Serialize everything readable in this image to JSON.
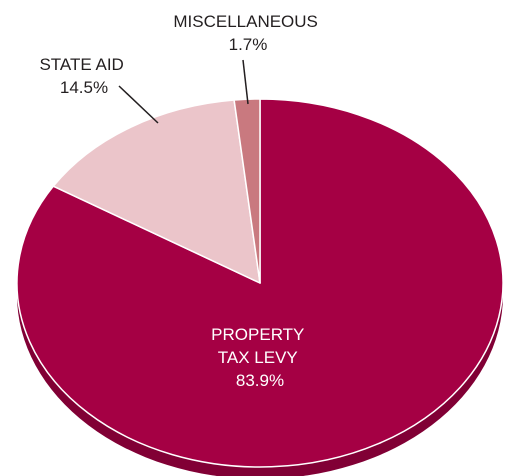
{
  "chart_data": {
    "type": "pie",
    "categories": [
      "PROPERTY TAX LEVY",
      "STATE AID",
      "MISCELLANEOUS"
    ],
    "values": [
      83.9,
      14.5,
      1.7
    ],
    "labels": [
      {
        "lines": [
          "PROPERTY",
          "TAX LEVY"
        ],
        "pct": "83.9%"
      },
      {
        "lines": [
          "STATE AID"
        ],
        "pct": "14.5%"
      },
      {
        "lines": [
          "MISCELLANEOUS"
        ],
        "pct": "1.7%"
      }
    ],
    "colors": [
      "#a50044",
      "#ebc5ca",
      "#c9797f"
    ],
    "legend": "none",
    "style": "3d-tilted"
  }
}
